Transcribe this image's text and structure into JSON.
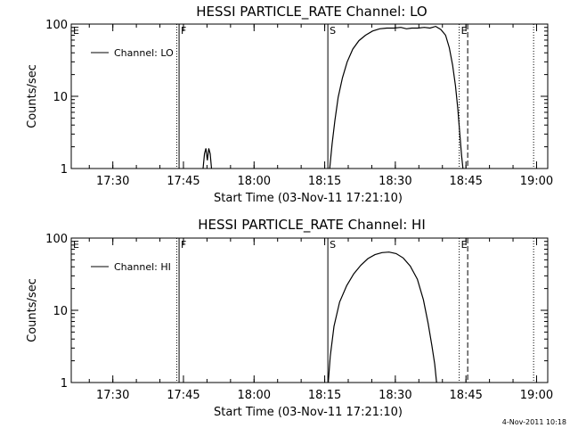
{
  "chart_data": [
    {
      "type": "line",
      "title": "HESSI PARTICLE_RATE Channel: LO",
      "xlabel": "Start Time (03-Nov-11 17:21:10)",
      "ylabel": "Counts/sec",
      "x_unit": "minutes after 17:21:10",
      "x_ticks": [
        {
          "label": "17:30",
          "x": 8.83
        },
        {
          "label": "17:45",
          "x": 23.83
        },
        {
          "label": "18:00",
          "x": 38.83
        },
        {
          "label": "18:15",
          "x": 53.83
        },
        {
          "label": "18:30",
          "x": 68.83
        },
        {
          "label": "18:45",
          "x": 83.83
        },
        {
          "label": "19:00",
          "x": 98.83
        }
      ],
      "xlim": [
        0,
        101.2
      ],
      "y_scale": "log",
      "ylim": [
        1,
        100
      ],
      "y_ticks": [
        {
          "label": "1",
          "y": 1
        },
        {
          "label": "10",
          "y": 10
        },
        {
          "label": "100",
          "y": 100
        }
      ],
      "legend": {
        "placement": "top-left",
        "label": "Channel: LO"
      },
      "series": [
        {
          "name": "Channel: LO",
          "segments": [
            [
              [
                28.0,
                1
              ],
              [
                28.3,
                1.6
              ],
              [
                28.6,
                1.9
              ],
              [
                28.9,
                1.3
              ],
              [
                29.2,
                1.9
              ],
              [
                29.5,
                1.6
              ],
              [
                29.8,
                1
              ]
            ],
            [
              [
                54.9,
                1
              ],
              [
                55.4,
                2.2
              ],
              [
                56.0,
                4.6
              ],
              [
                56.7,
                9.7
              ],
              [
                57.6,
                18
              ],
              [
                58.6,
                30
              ],
              [
                59.8,
                45
              ],
              [
                61.1,
                59
              ],
              [
                62.5,
                70
              ],
              [
                64.0,
                80
              ],
              [
                65.5,
                86
              ],
              [
                67.0,
                88
              ],
              [
                68.5,
                88
              ],
              [
                70.0,
                90
              ],
              [
                71.2,
                86
              ],
              [
                72.3,
                88
              ],
              [
                73.6,
                88
              ],
              [
                75.0,
                90
              ],
              [
                76.2,
                88
              ],
              [
                77.4,
                93
              ],
              [
                78.5,
                84
              ],
              [
                79.5,
                70
              ],
              [
                80.3,
                47
              ],
              [
                81.0,
                27
              ],
              [
                81.6,
                14
              ],
              [
                82.1,
                6.8
              ],
              [
                82.5,
                3.2
              ],
              [
                82.9,
                1.5
              ],
              [
                83.2,
                1
              ]
            ]
          ]
        }
      ],
      "vlines": [
        {
          "label": "E",
          "x": -0.5,
          "style": "dotted"
        },
        {
          "label": "",
          "x": 22.4,
          "style": "dotted"
        },
        {
          "label": "F",
          "x": 22.9,
          "style": "solid"
        },
        {
          "label": "S",
          "x": 54.5,
          "style": "solid"
        },
        {
          "label": "E",
          "x": 82.4,
          "style": "dotted"
        },
        {
          "label": "",
          "x": 84.2,
          "style": "dashed"
        },
        {
          "label": "",
          "x": 98.2,
          "style": "dotted"
        }
      ]
    },
    {
      "type": "line",
      "title": "HESSI PARTICLE_RATE Channel: HI",
      "xlabel": "Start Time (03-Nov-11 17:21:10)",
      "ylabel": "Counts/sec",
      "x_unit": "minutes after 17:21:10",
      "x_ticks": [
        {
          "label": "17:30",
          "x": 8.83
        },
        {
          "label": "17:45",
          "x": 23.83
        },
        {
          "label": "18:00",
          "x": 38.83
        },
        {
          "label": "18:15",
          "x": 53.83
        },
        {
          "label": "18:30",
          "x": 68.83
        },
        {
          "label": "18:45",
          "x": 83.83
        },
        {
          "label": "19:00",
          "x": 98.83
        }
      ],
      "xlim": [
        0,
        101.2
      ],
      "y_scale": "log",
      "ylim": [
        1,
        100
      ],
      "y_ticks": [
        {
          "label": "1",
          "y": 1
        },
        {
          "label": "10",
          "y": 10
        },
        {
          "label": "100",
          "y": 100
        }
      ],
      "legend": {
        "placement": "top-left",
        "label": "Channel: HI"
      },
      "series": [
        {
          "name": "Channel: HI",
          "segments": [
            [
              [
                54.6,
                1
              ],
              [
                55.0,
                2.3
              ],
              [
                55.8,
                6.0
              ],
              [
                57.0,
                13
              ],
              [
                58.5,
                22
              ],
              [
                60.0,
                32
              ],
              [
                61.5,
                42
              ],
              [
                63.0,
                52
              ],
              [
                64.5,
                59
              ],
              [
                66.0,
                63
              ],
              [
                67.5,
                64
              ],
              [
                69.0,
                61
              ],
              [
                70.5,
                53
              ],
              [
                72.0,
                41
              ],
              [
                73.5,
                27
              ],
              [
                74.8,
                14
              ],
              [
                75.8,
                6.6
              ],
              [
                76.6,
                3.2
              ],
              [
                77.2,
                1.8
              ],
              [
                77.6,
                1
              ]
            ]
          ]
        }
      ],
      "vlines": [
        {
          "label": "E",
          "x": -0.5,
          "style": "dotted"
        },
        {
          "label": "",
          "x": 22.4,
          "style": "dotted"
        },
        {
          "label": "F",
          "x": 22.9,
          "style": "solid"
        },
        {
          "label": "S",
          "x": 54.5,
          "style": "solid"
        },
        {
          "label": "E",
          "x": 82.4,
          "style": "dotted"
        },
        {
          "label": "",
          "x": 84.2,
          "style": "dashed"
        },
        {
          "label": "",
          "x": 98.2,
          "style": "dotted"
        }
      ]
    }
  ],
  "footer": {
    "timestamp": "4-Nov-2011 10:18"
  }
}
